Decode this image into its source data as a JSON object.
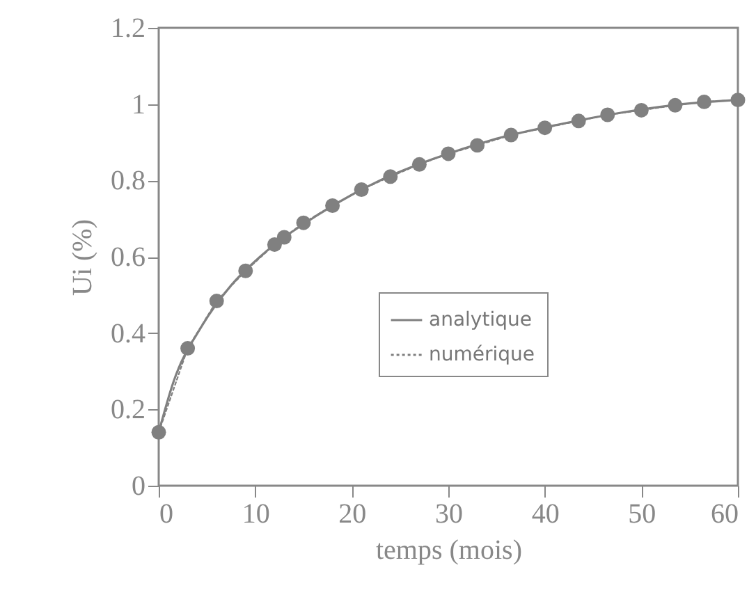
{
  "chart_data": {
    "type": "line",
    "xlabel": "temps (mois)",
    "ylabel": "Ui (%)",
    "x": [
      0,
      3,
      6,
      9,
      12,
      13,
      15,
      18,
      21,
      24,
      27,
      30,
      33,
      36.5,
      40,
      43.5,
      46.5,
      50,
      53.5,
      56.5,
      60
    ],
    "series": [
      {
        "name": "analytique",
        "color": "#808080",
        "line_style": "solid",
        "marker": "none",
        "x": [
          0,
          1.5,
          4.5,
          7.5,
          10.5,
          16.5,
          22.5,
          28.5,
          34.5,
          41.5,
          48,
          55,
          60
        ],
        "values": [
          0.14,
          0.27,
          0.42,
          0.525,
          0.6,
          0.71,
          0.795,
          0.857,
          0.906,
          0.947,
          0.978,
          1.002,
          1.011
        ]
      },
      {
        "name": "numérique",
        "color": "#808080",
        "line_style": "dotted",
        "marker": "circle",
        "values": [
          0.14,
          0.36,
          0.484,
          0.563,
          0.632,
          0.651,
          0.689,
          0.734,
          0.776,
          0.81,
          0.842,
          0.87,
          0.892,
          0.919,
          0.938,
          0.956,
          0.972,
          0.984,
          0.997,
          1.006,
          1.011
        ]
      }
    ],
    "xlim": [
      0,
      60
    ],
    "xticks": [
      0,
      10,
      20,
      30,
      40,
      50,
      60
    ],
    "ylim": [
      0,
      1.2
    ],
    "yticks": [
      0,
      0.2,
      0.4,
      0.6,
      0.8,
      1,
      1.2
    ],
    "grid": false,
    "legend": "right"
  }
}
